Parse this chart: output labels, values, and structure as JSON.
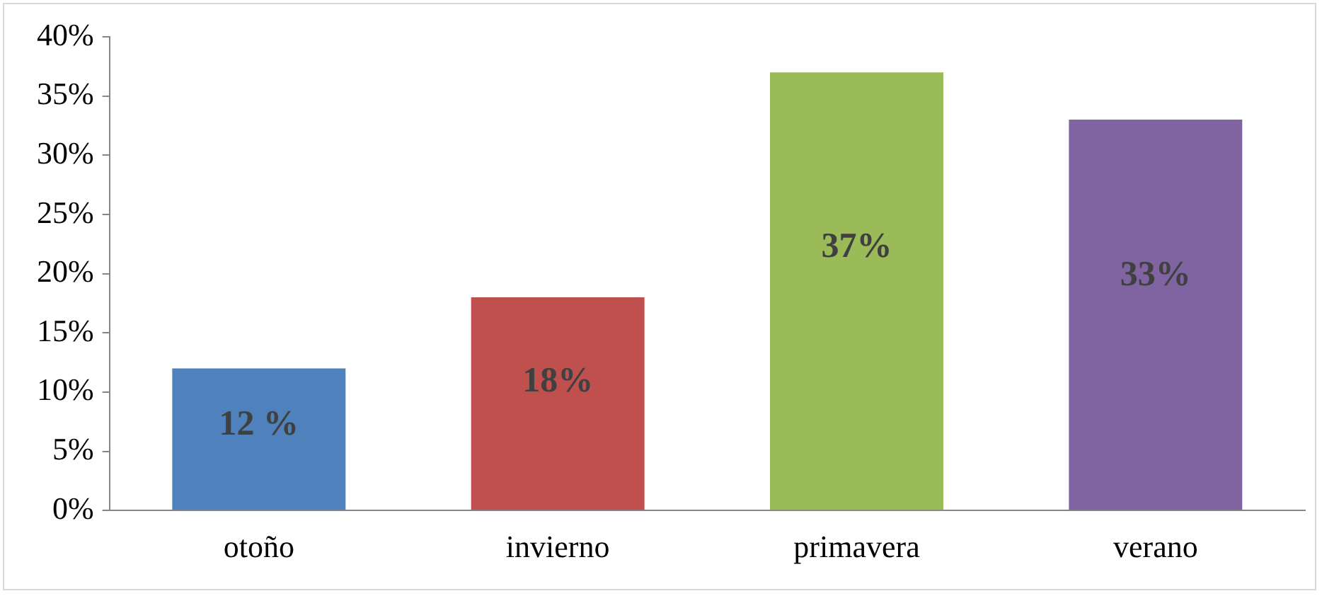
{
  "chart_data": {
    "type": "bar",
    "categories": [
      "otoño",
      "invierno",
      "primavera",
      "verano"
    ],
    "values": [
      12,
      18,
      37,
      33
    ],
    "colors": [
      "#4f81bd",
      "#c0504d",
      "#9bbb59",
      "#8064a2"
    ],
    "value_labels": [
      "12 %",
      "18%",
      "37%",
      "33%"
    ],
    "ylim": [
      0,
      40
    ],
    "yticks": [
      {
        "value": 0,
        "label": "0%"
      },
      {
        "value": 5,
        "label": "5%"
      },
      {
        "value": 10,
        "label": "10%"
      },
      {
        "value": 15,
        "label": "15%"
      },
      {
        "value": 20,
        "label": "20%"
      },
      {
        "value": 25,
        "label": "25%"
      },
      {
        "value": 30,
        "label": "30%"
      },
      {
        "value": 35,
        "label": "35%"
      },
      {
        "value": 40,
        "label": "40%"
      }
    ],
    "grid": false,
    "legend": false
  }
}
